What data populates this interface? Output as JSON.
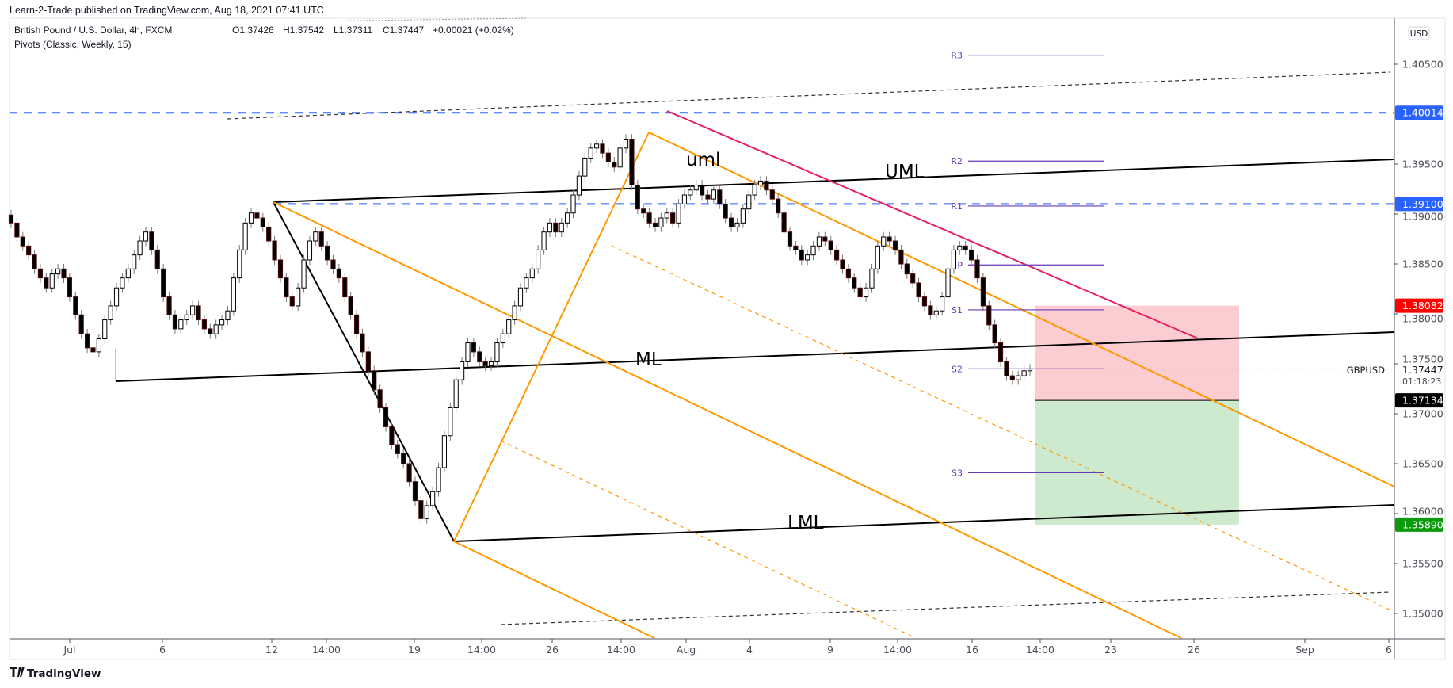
{
  "header": {
    "published": "Learn-2-Trade published on TradingView.com, Aug 18, 2021 07:41 UTC"
  },
  "legend": {
    "symbol_line": "British Pound / U.S. Dollar, 4h, FXCM",
    "open": "O1.37426",
    "high": "H1.37542",
    "low": "L1.37311",
    "close": "C1.37447",
    "change": "+0.00021 (+0.02%)",
    "indicator": "Pivots (Classic, Weekly, 15)"
  },
  "currency_button": "USD",
  "symbol_tag": "GBPUSD",
  "countdown": "01:18:23",
  "footer": {
    "logo_text": "TradingView"
  },
  "colors": {
    "up": "#ffffff",
    "down": "#000000",
    "blue_level": "#2962ff",
    "stop": "#ff0000",
    "target": "#089981",
    "pitchfork": "#ff9800",
    "trend": "#e91e63",
    "pivot": "#673ab7"
  },
  "chart_data": {
    "type": "candlestick",
    "symbol": "GBPUSD",
    "timeframe": "4h",
    "ylim": [
      1.348,
      1.4075
    ],
    "y_ticks": [
      "1.40500",
      "1.39500",
      "1.39000",
      "1.38500",
      "1.38000",
      "1.37500",
      "1.37000",
      "1.36500",
      "1.36000",
      "1.35500",
      "1.35000"
    ],
    "x_ticks": [
      "Jul",
      "6",
      "12",
      "14:00",
      "19",
      "14:00",
      "26",
      "14:00",
      "Aug",
      "4",
      "9",
      "14:00",
      "16",
      "14:00",
      "23",
      "26",
      "Sep",
      "6"
    ],
    "closes": [
      1.3891,
      1.3877,
      1.3868,
      1.3859,
      1.3845,
      1.3836,
      1.3826,
      1.384,
      1.3845,
      1.3836,
      1.3817,
      1.3799,
      1.378,
      1.3766,
      1.3762,
      1.3775,
      1.3794,
      1.3808,
      1.3826,
      1.3836,
      1.3845,
      1.3859,
      1.3873,
      1.3882,
      1.3864,
      1.3845,
      1.3817,
      1.3799,
      1.3785,
      1.3794,
      1.3799,
      1.3808,
      1.3794,
      1.3785,
      1.378,
      1.3789,
      1.3794,
      1.3803,
      1.3836,
      1.3864,
      1.3891,
      1.3901,
      1.3896,
      1.3887,
      1.3873,
      1.3854,
      1.3836,
      1.3817,
      1.3808,
      1.3826,
      1.3854,
      1.3873,
      1.3882,
      1.3868,
      1.3854,
      1.3845,
      1.3836,
      1.3817,
      1.3799,
      1.378,
      1.3762,
      1.3743,
      1.3724,
      1.3706,
      1.3687,
      1.3669,
      1.366,
      1.365,
      1.3632,
      1.3613,
      1.3595,
      1.3608,
      1.3622,
      1.3646,
      1.3678,
      1.3706,
      1.3734,
      1.3752,
      1.3771,
      1.3762,
      1.3752,
      1.3748,
      1.3752,
      1.3771,
      1.378,
      1.3794,
      1.3808,
      1.3826,
      1.3836,
      1.3845,
      1.3864,
      1.3882,
      1.3891,
      1.3882,
      1.3891,
      1.3901,
      1.3919,
      1.3938,
      1.3956,
      1.3966,
      1.397,
      1.3961,
      1.3952,
      1.3947,
      1.3966,
      1.3975,
      1.3929,
      1.3905,
      1.3901,
      1.3891,
      1.3887,
      1.3896,
      1.3901,
      1.3891,
      1.391,
      1.3919,
      1.3924,
      1.3929,
      1.3919,
      1.3915,
      1.3924,
      1.391,
      1.3896,
      1.3887,
      1.3891,
      1.3905,
      1.3919,
      1.3929,
      1.3933,
      1.3924,
      1.3915,
      1.3901,
      1.3882,
      1.3868,
      1.3864,
      1.3854,
      1.3859,
      1.3868,
      1.3877,
      1.3873,
      1.3864,
      1.3854,
      1.3845,
      1.3836,
      1.3826,
      1.3817,
      1.3826,
      1.3845,
      1.3868,
      1.3877,
      1.3873,
      1.3864,
      1.385,
      1.384,
      1.3831,
      1.3817,
      1.3808,
      1.3799,
      1.3803,
      1.3817,
      1.3845,
      1.3864,
      1.3868,
      1.3864,
      1.3854,
      1.3836,
      1.3808,
      1.3789,
      1.3771,
      1.3752,
      1.3738,
      1.3734,
      1.3738,
      1.3743,
      1.37447
    ],
    "horizontal_levels": [
      {
        "label": "1.40014",
        "value": 1.40014
      },
      {
        "label": "1.39100",
        "value": 1.391
      }
    ],
    "position": {
      "stop_label": "1.38082",
      "stop": 1.38082,
      "entry_label": "1.37134",
      "entry": 1.37134,
      "target_label": "1.35890",
      "target": 1.3589
    },
    "last_price_label": "1.37447",
    "pitchfork_labels": {
      "upper": "UML",
      "median": "ML",
      "lower": "LML",
      "inner": "uml"
    },
    "pivots": [
      {
        "label": "R3",
        "value": 1.4059
      },
      {
        "label": "R2",
        "value": 1.3953
      },
      {
        "label": "R1",
        "value": 1.3908
      },
      {
        "label": "P",
        "value": 1.3849
      },
      {
        "label": "S1",
        "value": 1.3804
      },
      {
        "label": "S2",
        "value": 1.3745
      },
      {
        "label": "S3",
        "value": 1.3641
      }
    ]
  }
}
